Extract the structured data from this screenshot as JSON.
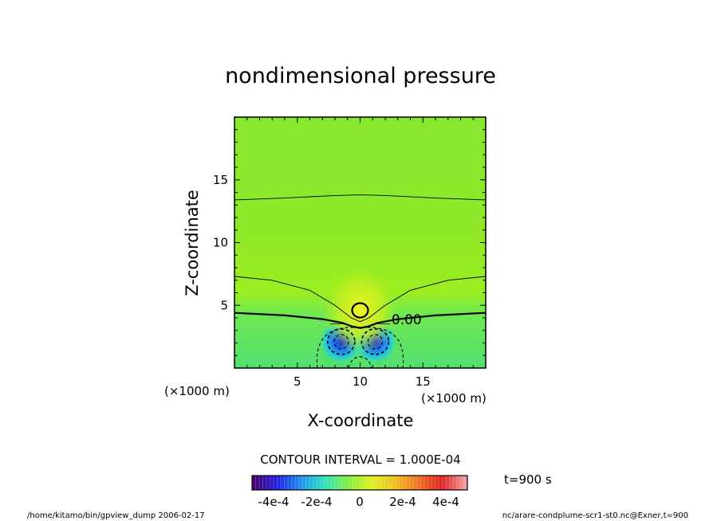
{
  "chart_data": {
    "type": "heatmap",
    "title": "nondimensional pressure",
    "xlabel": "X-coordinate",
    "ylabel": "Z-coordinate",
    "x_unit_label": "(×1000 m)",
    "y_unit_label": "(×1000 m)",
    "xlim": [
      0,
      20
    ],
    "ylim": [
      0,
      20
    ],
    "xticks": [
      "5",
      "10",
      "15"
    ],
    "yticks": [
      "5",
      "10",
      "15"
    ],
    "contour_interval": "CONTOUR INTERVAL = 1.000E-04",
    "contour_label": "0.00",
    "colorbar": {
      "range": [
        -0.0005,
        0.0005
      ],
      "tick_labels": [
        "-4e-4",
        "-2e-4",
        "0",
        "2e-4",
        "4e-4"
      ],
      "colors": [
        "#4a0070",
        "#2020e0",
        "#2090f0",
        "#30e0c0",
        "#80f040",
        "#e0f020",
        "#f0c020",
        "#f07020",
        "#e02020",
        "#f0a0a0"
      ]
    },
    "features": [
      {
        "kind": "low",
        "x": 8.5,
        "z": 2.1,
        "value": -0.00035
      },
      {
        "kind": "low",
        "x": 11.2,
        "z": 2.1,
        "value": -0.00035
      },
      {
        "kind": "high",
        "x": 10.0,
        "z": 4.6,
        "value": 0.0001
      }
    ]
  },
  "time_label": "t=900 s",
  "footer_left": "/home/kitamo/bin/gpview_dump   2006-02-17",
  "footer_right": "nc/arare-condplume-scr1-st0.nc@Exner,t=900"
}
